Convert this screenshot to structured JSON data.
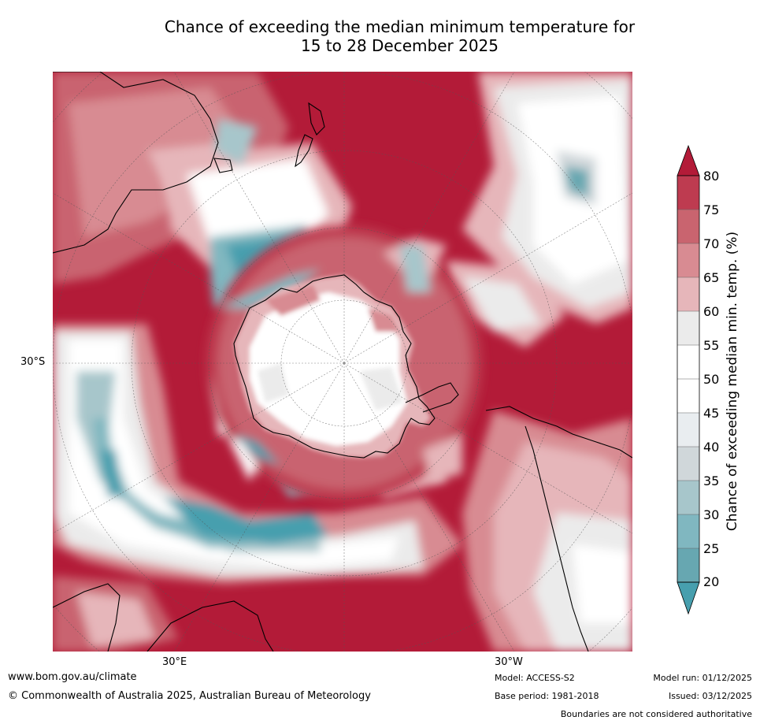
{
  "title": {
    "line1": "Chance of exceeding the median minimum temperature for",
    "line2": "15 to 28 December 2025"
  },
  "map": {
    "projection": "south-polar-stereographic",
    "lat_label": "30°S",
    "lon_labels": [
      "30°E",
      "30°W"
    ]
  },
  "colorbar": {
    "title": "Chance of exceeding median min. temp. (%)",
    "ticks": [
      "80",
      "75",
      "70",
      "65",
      "60",
      "55",
      "50",
      "45",
      "40",
      "35",
      "30",
      "25",
      "20"
    ],
    "colors": {
      "above_80": "#b31b38",
      "75_80": "#be3b50",
      "70_75": "#c9646f",
      "65_70": "#d88b92",
      "60_65": "#e6b6ba",
      "55_60": "#ebebeb",
      "50_55": "#ffffff",
      "45_50": "#ffffff",
      "40_45": "#e9edf0",
      "35_40": "#d0d7da",
      "30_35": "#a7c6cb",
      "25_30": "#80b7c0",
      "20_25": "#67a7b1",
      "below_20": "#479fae"
    }
  },
  "footer": {
    "website": "www.bom.gov.au/climate",
    "copyright": "© Commonwealth of Australia 2025, Australian Bureau of Meteorology",
    "model": "Model: ACCESS-S2",
    "base_period": "Base period: 1981-2018",
    "model_run": "Model run: 01/12/2025",
    "issued": "Issued: 03/12/2025",
    "disclaimer": "Boundaries are not considered authoritative"
  }
}
